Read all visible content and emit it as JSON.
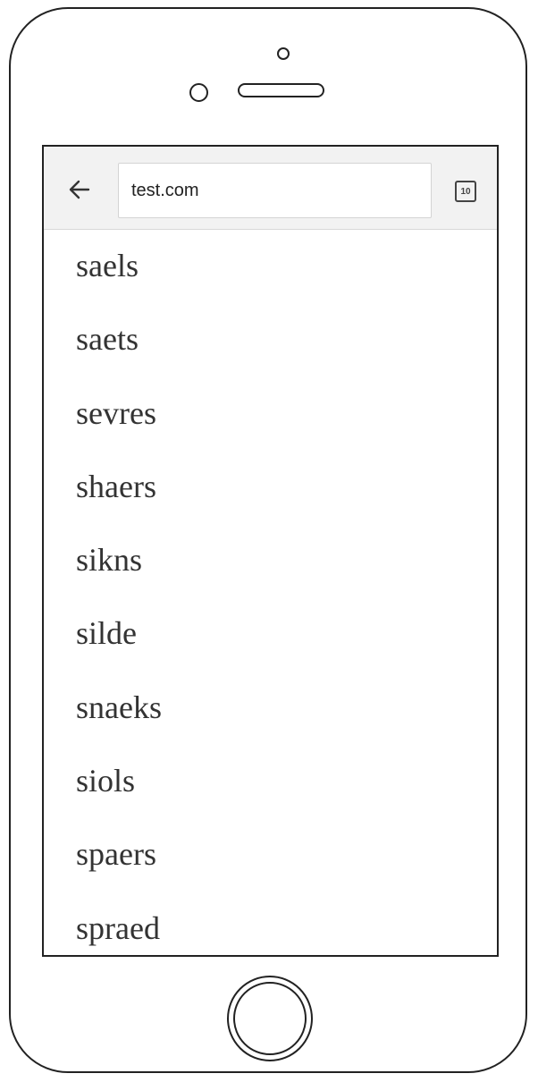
{
  "browser": {
    "url": "test.com",
    "tab_count": "10",
    "back_icon": "arrow-left-icon",
    "tabs_icon": "tab-count-icon"
  },
  "list": {
    "items": [
      "saels",
      "saets",
      "sevres",
      "shaers",
      "sikns",
      "silde",
      "snaeks",
      "siols",
      "spaers",
      "spraed"
    ]
  },
  "colors": {
    "toolbar_bg": "#f2f2f2",
    "text": "#333333",
    "outline": "#222222"
  }
}
